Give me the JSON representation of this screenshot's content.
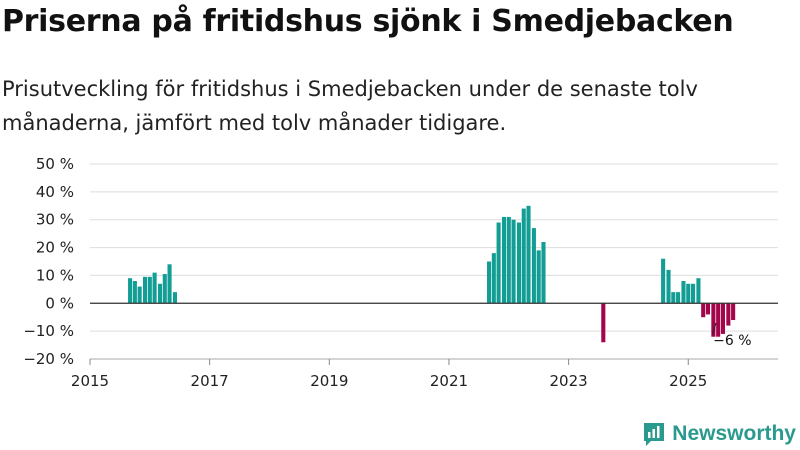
{
  "title": "Priserna på fritidshus sjönk i Smedjebacken",
  "subtitle": "Prisutveckling för fritidshus i Smedjebacken under de senaste tolv månaderna, jämfört med tolv månader tidigare.",
  "brand": "Newsworthy",
  "colors": {
    "positive": "#139e95",
    "negative": "#a3044a",
    "brand": "#2a9a8e"
  },
  "chart_data": {
    "type": "bar",
    "ylim": [
      -20,
      50
    ],
    "yticks": [
      -20,
      -10,
      0,
      10,
      20,
      30,
      40,
      50
    ],
    "ytick_labels": [
      "−20 %",
      "−10 %",
      "0 %",
      "10 %",
      "20 %",
      "30 %",
      "40 %",
      "50 %"
    ],
    "xlim": [
      2015,
      2026.5
    ],
    "xticks": [
      2015,
      2017,
      2019,
      2021,
      2023,
      2025
    ],
    "xtick_labels": [
      "2015",
      "2017",
      "2019",
      "2021",
      "2023",
      "2025"
    ],
    "annotation": {
      "text": "−6 %",
      "x": 2025.75,
      "y": -6
    },
    "series": [
      {
        "name": "Prisutveckling",
        "points": [
          {
            "x": 2015.67,
            "y": 9
          },
          {
            "x": 2015.75,
            "y": 8
          },
          {
            "x": 2015.83,
            "y": 6
          },
          {
            "x": 2015.92,
            "y": 9.5
          },
          {
            "x": 2016.0,
            "y": 9.5
          },
          {
            "x": 2016.08,
            "y": 11
          },
          {
            "x": 2016.17,
            "y": 7
          },
          {
            "x": 2016.25,
            "y": 10.5
          },
          {
            "x": 2016.33,
            "y": 14
          },
          {
            "x": 2016.42,
            "y": 4
          },
          {
            "x": 2021.67,
            "y": 15
          },
          {
            "x": 2021.75,
            "y": 18
          },
          {
            "x": 2021.83,
            "y": 29
          },
          {
            "x": 2021.92,
            "y": 31
          },
          {
            "x": 2022.0,
            "y": 31
          },
          {
            "x": 2022.08,
            "y": 30
          },
          {
            "x": 2022.17,
            "y": 29
          },
          {
            "x": 2022.25,
            "y": 34
          },
          {
            "x": 2022.33,
            "y": 35
          },
          {
            "x": 2022.42,
            "y": 27
          },
          {
            "x": 2022.5,
            "y": 19
          },
          {
            "x": 2022.58,
            "y": 22
          },
          {
            "x": 2023.58,
            "y": -14
          },
          {
            "x": 2024.58,
            "y": 16
          },
          {
            "x": 2024.67,
            "y": 12
          },
          {
            "x": 2024.75,
            "y": 4
          },
          {
            "x": 2024.83,
            "y": 4
          },
          {
            "x": 2024.92,
            "y": 8
          },
          {
            "x": 2025.0,
            "y": 7
          },
          {
            "x": 2025.08,
            "y": 7
          },
          {
            "x": 2025.17,
            "y": 9
          },
          {
            "x": 2025.25,
            "y": -5
          },
          {
            "x": 2025.33,
            "y": -4
          },
          {
            "x": 2025.42,
            "y": -12
          },
          {
            "x": 2025.5,
            "y": -12
          },
          {
            "x": 2025.58,
            "y": -11
          },
          {
            "x": 2025.67,
            "y": -8
          },
          {
            "x": 2025.75,
            "y": -6
          }
        ]
      }
    ]
  }
}
